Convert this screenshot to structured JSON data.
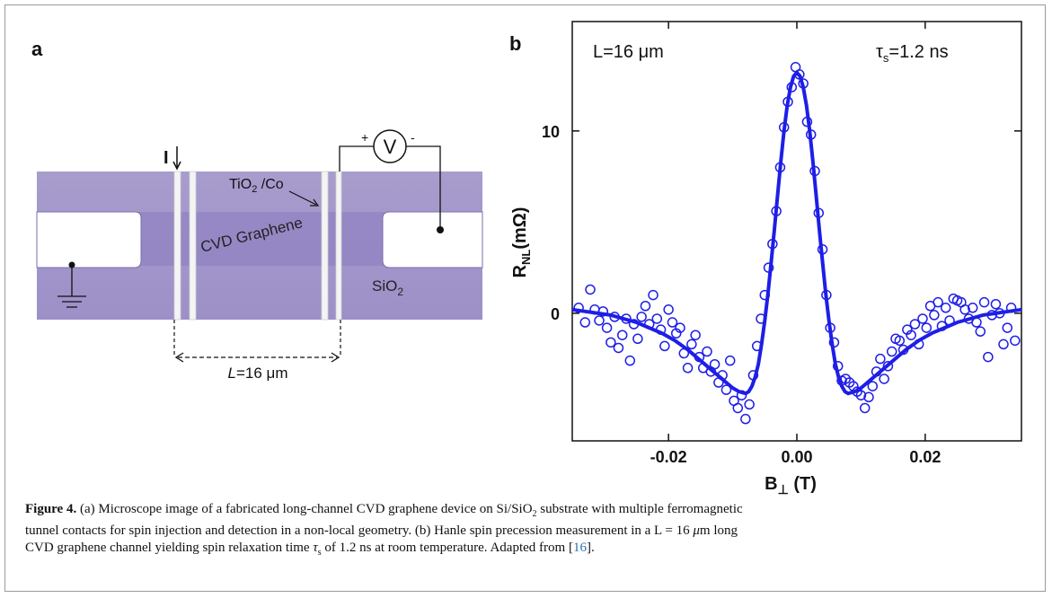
{
  "panels": {
    "a_label": "a",
    "b_label": "b"
  },
  "panel_a": {
    "current_label": "I",
    "voltmeter_symbol": "V",
    "plus": "+",
    "minus": "-",
    "contact_label": "TiO",
    "contact_sub": "2",
    "contact_suffix": " /Co",
    "channel_label": "CVD Graphene",
    "substrate_label": "SiO",
    "substrate_sub": "2",
    "length_label_italic": "L",
    "length_label_rest": "=16 μm",
    "colors": {
      "substrate": "#9a8fc7",
      "graphene": "#8a78c0",
      "contact": "#f5f5f5",
      "pad": "#ffffff"
    }
  },
  "chart_data": {
    "type": "scatter",
    "title": "",
    "annotation_left": "L=16 μm",
    "annotation_right_tau": "τ",
    "annotation_right_sub": "s",
    "annotation_right_value": "=1.2 ns",
    "xlabel_main": "B",
    "xlabel_sub": "⊥",
    "xlabel_unit": " (T)",
    "ylabel_main": "R",
    "ylabel_sub": "NL",
    "ylabel_unit": "(mΩ)",
    "xlim": [
      -0.035,
      0.035
    ],
    "ylim": [
      -7,
      16
    ],
    "xticks": [
      -0.02,
      0.0,
      0.02
    ],
    "xtick_labels": [
      "-0.02",
      "0.00",
      "0.02"
    ],
    "yticks": [
      0,
      10
    ],
    "ytick_labels": [
      "0",
      "10"
    ],
    "grid": false,
    "color": "#1e1ee6",
    "series": [
      {
        "kind": "points",
        "x": [
          -0.034,
          -0.033,
          -0.0322,
          -0.0315,
          -0.0308,
          -0.0302,
          -0.0296,
          -0.029,
          -0.0284,
          -0.0278,
          -0.0272,
          -0.0266,
          -0.026,
          -0.0254,
          -0.0248,
          -0.0242,
          -0.0236,
          -0.023,
          -0.0224,
          -0.0218,
          -0.0212,
          -0.0206,
          -0.02,
          -0.0194,
          -0.0188,
          -0.0182,
          -0.0176,
          -0.017,
          -0.0164,
          -0.0158,
          -0.0152,
          -0.0146,
          -0.014,
          -0.0134,
          -0.0128,
          -0.0122,
          -0.0116,
          -0.011,
          -0.0104,
          -0.0098,
          -0.0092,
          -0.0086,
          -0.008,
          -0.0074,
          -0.0068,
          -0.0062,
          -0.0056,
          -0.005,
          -0.0044,
          -0.0038,
          -0.0032,
          -0.0026,
          -0.002,
          -0.0014,
          -0.0008,
          -0.0002,
          0.0004,
          0.001,
          0.0016,
          0.0022,
          0.0028,
          0.0034,
          0.004,
          0.0046,
          0.0052,
          0.0058,
          0.0064,
          0.007,
          0.0076,
          0.0082,
          0.0088,
          0.0094,
          0.01,
          0.0106,
          0.0112,
          0.0118,
          0.0124,
          0.013,
          0.0136,
          0.0142,
          0.0148,
          0.0154,
          0.016,
          0.0166,
          0.0172,
          0.0178,
          0.0184,
          0.019,
          0.0196,
          0.0202,
          0.0208,
          0.0214,
          0.022,
          0.0226,
          0.0232,
          0.0238,
          0.0244,
          0.025,
          0.0256,
          0.0262,
          0.0268,
          0.0274,
          0.028,
          0.0286,
          0.0292,
          0.0298,
          0.0304,
          0.031,
          0.0316,
          0.0322,
          0.0328,
          0.0334,
          0.034
        ],
        "y": [
          0.3,
          -0.5,
          1.3,
          0.2,
          -0.4,
          0.1,
          -0.8,
          -1.6,
          -0.2,
          -1.9,
          -1.2,
          -0.3,
          -2.6,
          -0.6,
          -1.4,
          -0.2,
          0.4,
          -0.6,
          1.0,
          -0.3,
          -0.9,
          -1.8,
          0.2,
          -0.5,
          -1.1,
          -0.8,
          -2.2,
          -3.0,
          -1.7,
          -1.2,
          -2.4,
          -3.0,
          -2.1,
          -3.2,
          -2.8,
          -3.8,
          -3.4,
          -4.2,
          -2.6,
          -4.8,
          -5.2,
          -4.5,
          -5.8,
          -5.0,
          -3.4,
          -1.8,
          -0.3,
          1.0,
          2.5,
          3.8,
          5.6,
          8.0,
          10.2,
          11.6,
          12.4,
          13.5,
          13.1,
          12.6,
          10.5,
          9.8,
          7.8,
          5.5,
          3.5,
          1.0,
          -0.8,
          -1.6,
          -2.9,
          -3.7,
          -3.6,
          -3.8,
          -4.0,
          -4.3,
          -4.5,
          -5.2,
          -4.6,
          -4.0,
          -3.2,
          -2.5,
          -3.6,
          -2.9,
          -2.1,
          -1.4,
          -1.5,
          -2.0,
          -0.9,
          -1.2,
          -0.6,
          -1.7,
          -0.3,
          -0.8,
          0.4,
          -0.1,
          0.6,
          -0.7,
          0.3,
          -0.4,
          0.8,
          0.7,
          0.6,
          0.2,
          -0.3,
          0.3,
          -0.5,
          -1.0,
          0.6,
          -2.4,
          -0.1,
          0.5,
          0.0,
          -1.7,
          -0.8,
          0.3,
          -1.5
        ]
      },
      {
        "kind": "fit_line",
        "x": [
          -0.035,
          -0.033,
          -0.031,
          -0.029,
          -0.027,
          -0.025,
          -0.023,
          -0.021,
          -0.019,
          -0.017,
          -0.015,
          -0.013,
          -0.011,
          -0.01,
          -0.009,
          -0.008,
          -0.0075,
          -0.007,
          -0.0065,
          -0.006,
          -0.0055,
          -0.005,
          -0.0045,
          -0.004,
          -0.0035,
          -0.003,
          -0.0025,
          -0.002,
          -0.0015,
          -0.001,
          -0.0005,
          0.0,
          0.0005,
          0.001,
          0.0015,
          0.002,
          0.0025,
          0.003,
          0.0035,
          0.004,
          0.0045,
          0.005,
          0.0055,
          0.006,
          0.0065,
          0.007,
          0.0075,
          0.008,
          0.009,
          0.01,
          0.011,
          0.013,
          0.015,
          0.017,
          0.019,
          0.021,
          0.023,
          0.025,
          0.027,
          0.029,
          0.031,
          0.033,
          0.035
        ],
        "y": [
          0.2,
          0.1,
          0.0,
          -0.1,
          -0.3,
          -0.5,
          -0.8,
          -1.1,
          -1.5,
          -2.0,
          -2.6,
          -3.2,
          -3.8,
          -4.1,
          -4.3,
          -4.4,
          -4.3,
          -4.0,
          -3.5,
          -2.8,
          -1.7,
          -0.4,
          1.1,
          2.8,
          4.6,
          6.5,
          8.3,
          10.0,
          11.4,
          12.4,
          13.0,
          13.2,
          13.0,
          12.4,
          11.4,
          10.0,
          8.3,
          6.5,
          4.6,
          2.8,
          1.1,
          -0.4,
          -1.7,
          -2.8,
          -3.5,
          -4.0,
          -4.3,
          -4.4,
          -4.3,
          -4.1,
          -3.8,
          -3.2,
          -2.6,
          -2.0,
          -1.5,
          -1.1,
          -0.8,
          -0.5,
          -0.3,
          -0.1,
          0.0,
          0.1,
          0.2
        ]
      }
    ]
  },
  "caption": {
    "label": "Figure 4.",
    "line1a": " (a) Microscope image of a fabricated long-channel CVD graphene device on Si/SiO",
    "line1sub": "2",
    "line1b": " substrate with multiple ferromagnetic",
    "line2": "tunnel contacts for spin injection and detection in a non-local geometry. (b) Hanle spin precession measurement in a L = 16 ",
    "line2mu": "μ",
    "line2b": "m long",
    "line3a": "CVD graphene channel yielding spin relaxation time  ",
    "line3tau": "τ",
    "line3sub": "s",
    "line3b": " of 1.2  ns at room temperature. Adapted from [",
    "line3ref": "16",
    "line3c": "]."
  }
}
